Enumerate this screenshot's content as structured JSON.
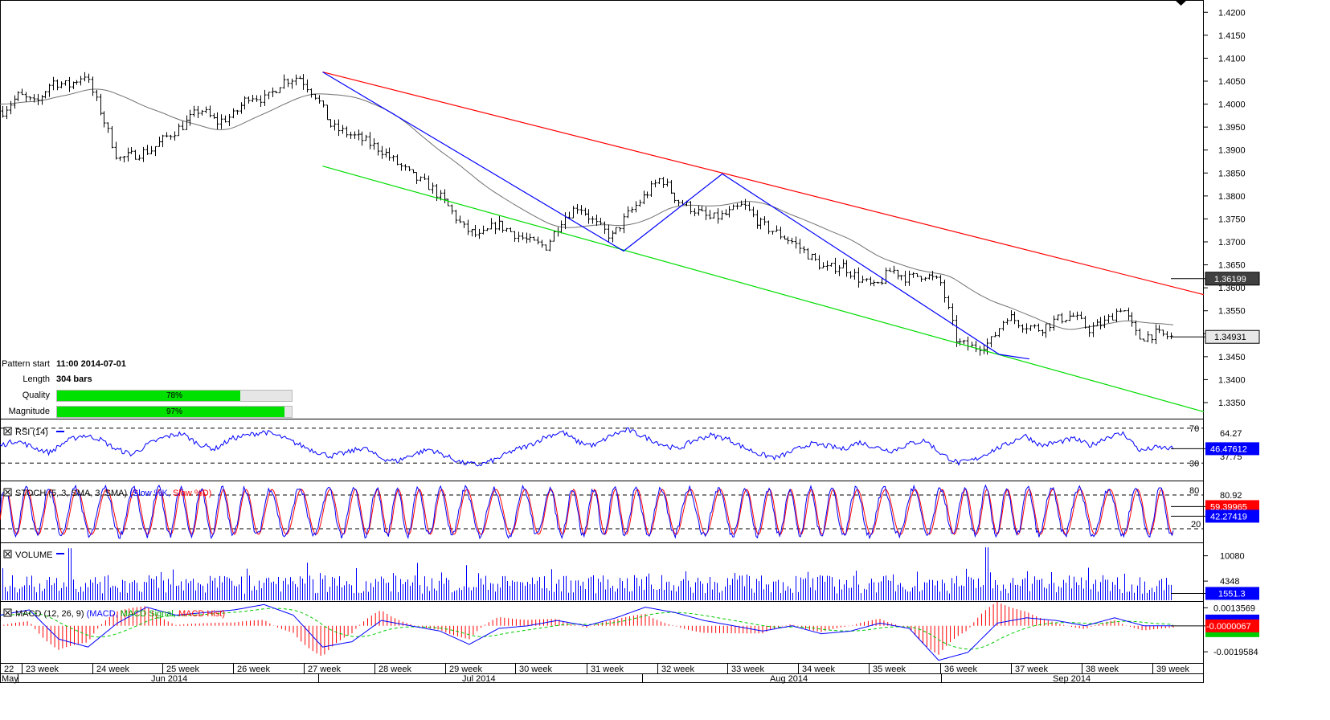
{
  "chart_data": {
    "type": "candlestick",
    "title": "",
    "main": {
      "y_ticks": [
        "1.3350",
        "1.3400",
        "1.3450",
        "1.3500",
        "1.3550",
        "1.3600",
        "1.3650",
        "1.3700",
        "1.3750",
        "1.3800",
        "1.3850",
        "1.3900",
        "1.3950",
        "1.4000",
        "1.4050",
        "1.4100",
        "1.4150",
        "1.4200"
      ],
      "ylim": [
        1.3315,
        1.4225
      ],
      "price_path": [
        1.3985,
        1.402,
        1.4,
        1.405,
        1.404,
        1.4065,
        1.398,
        1.388,
        1.389,
        1.39,
        1.393,
        1.3955,
        1.399,
        1.396,
        1.3975,
        1.402,
        1.401,
        1.405,
        1.406,
        1.402,
        1.395,
        1.3935,
        1.392,
        1.39,
        1.387,
        1.384,
        1.382,
        1.378,
        1.373,
        1.371,
        1.374,
        1.372,
        1.37,
        1.369,
        1.375,
        1.378,
        1.374,
        1.371,
        1.376,
        1.38,
        1.384,
        1.379,
        1.377,
        1.375,
        1.376,
        1.378,
        1.374,
        1.372,
        1.37,
        1.367,
        1.364,
        1.365,
        1.362,
        1.36,
        1.364,
        1.362,
        1.363,
        1.361,
        1.348,
        1.347,
        1.348,
        1.354,
        1.352,
        1.351,
        1.353,
        1.354,
        1.351,
        1.3525,
        1.356,
        1.349,
        1.35,
        1.3493
      ],
      "current_price_label": "1.34931",
      "ma_label": "1.36199",
      "pattern": {
        "type": "descending channel",
        "resistance": [
          [
            0.268,
            1.407
          ],
          [
            1.0,
            1.3585
          ]
        ],
        "support": [
          [
            0.268,
            1.3865
          ],
          [
            1.0,
            1.333
          ]
        ],
        "zigzag": [
          [
            0.268,
            1.407
          ],
          [
            0.518,
            1.368
          ],
          [
            0.6,
            1.3848
          ],
          [
            0.83,
            1.3455
          ],
          [
            0.855,
            1.3445
          ]
        ]
      },
      "info": {
        "pattern_start_label": "Pattern start",
        "pattern_start_value": "11:00 2014-07-01",
        "length_label": "Length",
        "length_value": "304 bars",
        "quality_label": "Quality",
        "quality_pct": 78,
        "quality_text": "78%",
        "magnitude_label": "Magnitude",
        "magnitude_pct": 97,
        "magnitude_text": "97%"
      },
      "colors": {
        "resistance": "#ff0000",
        "support": "#00dd00",
        "zigzag": "#0000ff",
        "ma": "#707070",
        "bars": "#000000"
      }
    },
    "rsi": {
      "title": "RSI (14)",
      "ylim": [
        10,
        80
      ],
      "levels": [
        "70",
        "30"
      ],
      "extra_labels": [
        "64.27",
        "37.75"
      ],
      "current": "46.47612",
      "path": [
        50,
        56,
        48,
        42,
        55,
        62,
        58,
        46,
        40,
        52,
        60,
        64,
        52,
        46,
        58,
        62,
        66,
        60,
        52,
        44,
        38,
        42,
        48,
        36,
        32,
        40,
        46,
        38,
        30,
        28,
        34,
        44,
        50,
        60,
        66,
        54,
        50,
        62,
        68,
        60,
        52,
        46,
        56,
        62,
        58,
        48,
        40,
        36,
        44,
        52,
        50,
        46,
        54,
        48,
        44,
        52,
        56,
        40,
        30,
        34,
        44,
        52,
        62,
        50,
        54,
        58,
        50,
        60,
        64,
        44,
        48,
        46.5
      ]
    },
    "stoch": {
      "title": "STOCH (5, 3, SMA, 3, SMA) ",
      "legend": [
        "(Slow %K, ",
        "Slow %D)"
      ],
      "ylim": [
        0,
        100
      ],
      "levels": [
        "80",
        "20"
      ],
      "extra_labels": [
        "80.92"
      ],
      "current_k": "59.39965",
      "current_d": "42.27419"
    },
    "volume": {
      "title": "VOLUME",
      "y_ticks": [
        "10080",
        "4348"
      ],
      "ymax": 12200,
      "current": "1551.3"
    },
    "macd": {
      "title": "MACD (12, 26, 9) ",
      "legend": [
        "(MACD, ",
        "MACD Signal, ",
        "MACD Hist)"
      ],
      "y_ticks": [
        "0.0013569",
        "-0.0019584"
      ],
      "ylim": [
        -0.0028,
        0.0018
      ],
      "current": "-0.0000067",
      "colors": {
        "macd": "#0000ff",
        "signal": "#00cc00",
        "hist": "#ff0000"
      }
    },
    "x_axis": {
      "weeks": [
        "22",
        "23 week",
        "24 week",
        "25 week",
        "26 week",
        "27 week",
        "28 week",
        "29 week",
        "30 week",
        "31 week",
        "32 week",
        "33 week",
        "34 week",
        "35 week",
        "36 week",
        "37 week",
        "38 week",
        "39 week"
      ],
      "months": [
        "May",
        "Jun 2014",
        "Jul 2014",
        "Aug 2014",
        "Sep 2014"
      ]
    }
  }
}
